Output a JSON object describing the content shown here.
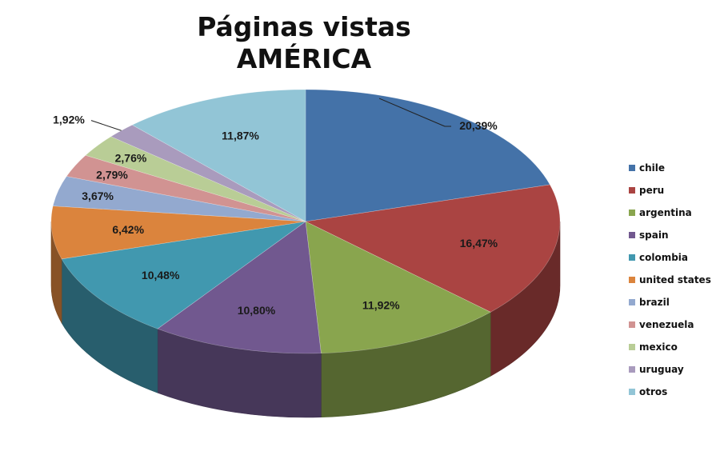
{
  "chart_data": {
    "type": "pie",
    "title": "Páginas vistas",
    "subtitle": "AMÉRICA",
    "legend_position": "right",
    "slices": [
      {
        "name": "chile",
        "value": 20.39,
        "label": "20,39%",
        "color": "#4472a8"
      },
      {
        "name": "peru",
        "value": 16.47,
        "label": "16,47%",
        "color": "#aa4442"
      },
      {
        "name": "argentina",
        "value": 11.92,
        "label": "11,92%",
        "color": "#89a54e"
      },
      {
        "name": "spain",
        "value": 10.8,
        "label": "10,80%",
        "color": "#71588f"
      },
      {
        "name": "colombia",
        "value": 10.48,
        "label": "10,48%",
        "color": "#4198af"
      },
      {
        "name": "united states",
        "value": 6.42,
        "label": "6,42%",
        "color": "#db843d"
      },
      {
        "name": "brazil",
        "value": 3.67,
        "label": "3,67%",
        "color": "#93a9cf"
      },
      {
        "name": "venezuela",
        "value": 2.79,
        "label": "2,79%",
        "color": "#d19392"
      },
      {
        "name": "mexico",
        "value": 2.76,
        "label": "2,76%",
        "color": "#b9cd96"
      },
      {
        "name": "uruguay",
        "value": 1.92,
        "label": "1,92%",
        "color": "#a99bbd"
      },
      {
        "name": "otros",
        "value": 11.87,
        "label": "11,87%",
        "color": "#92c5d6"
      }
    ]
  }
}
